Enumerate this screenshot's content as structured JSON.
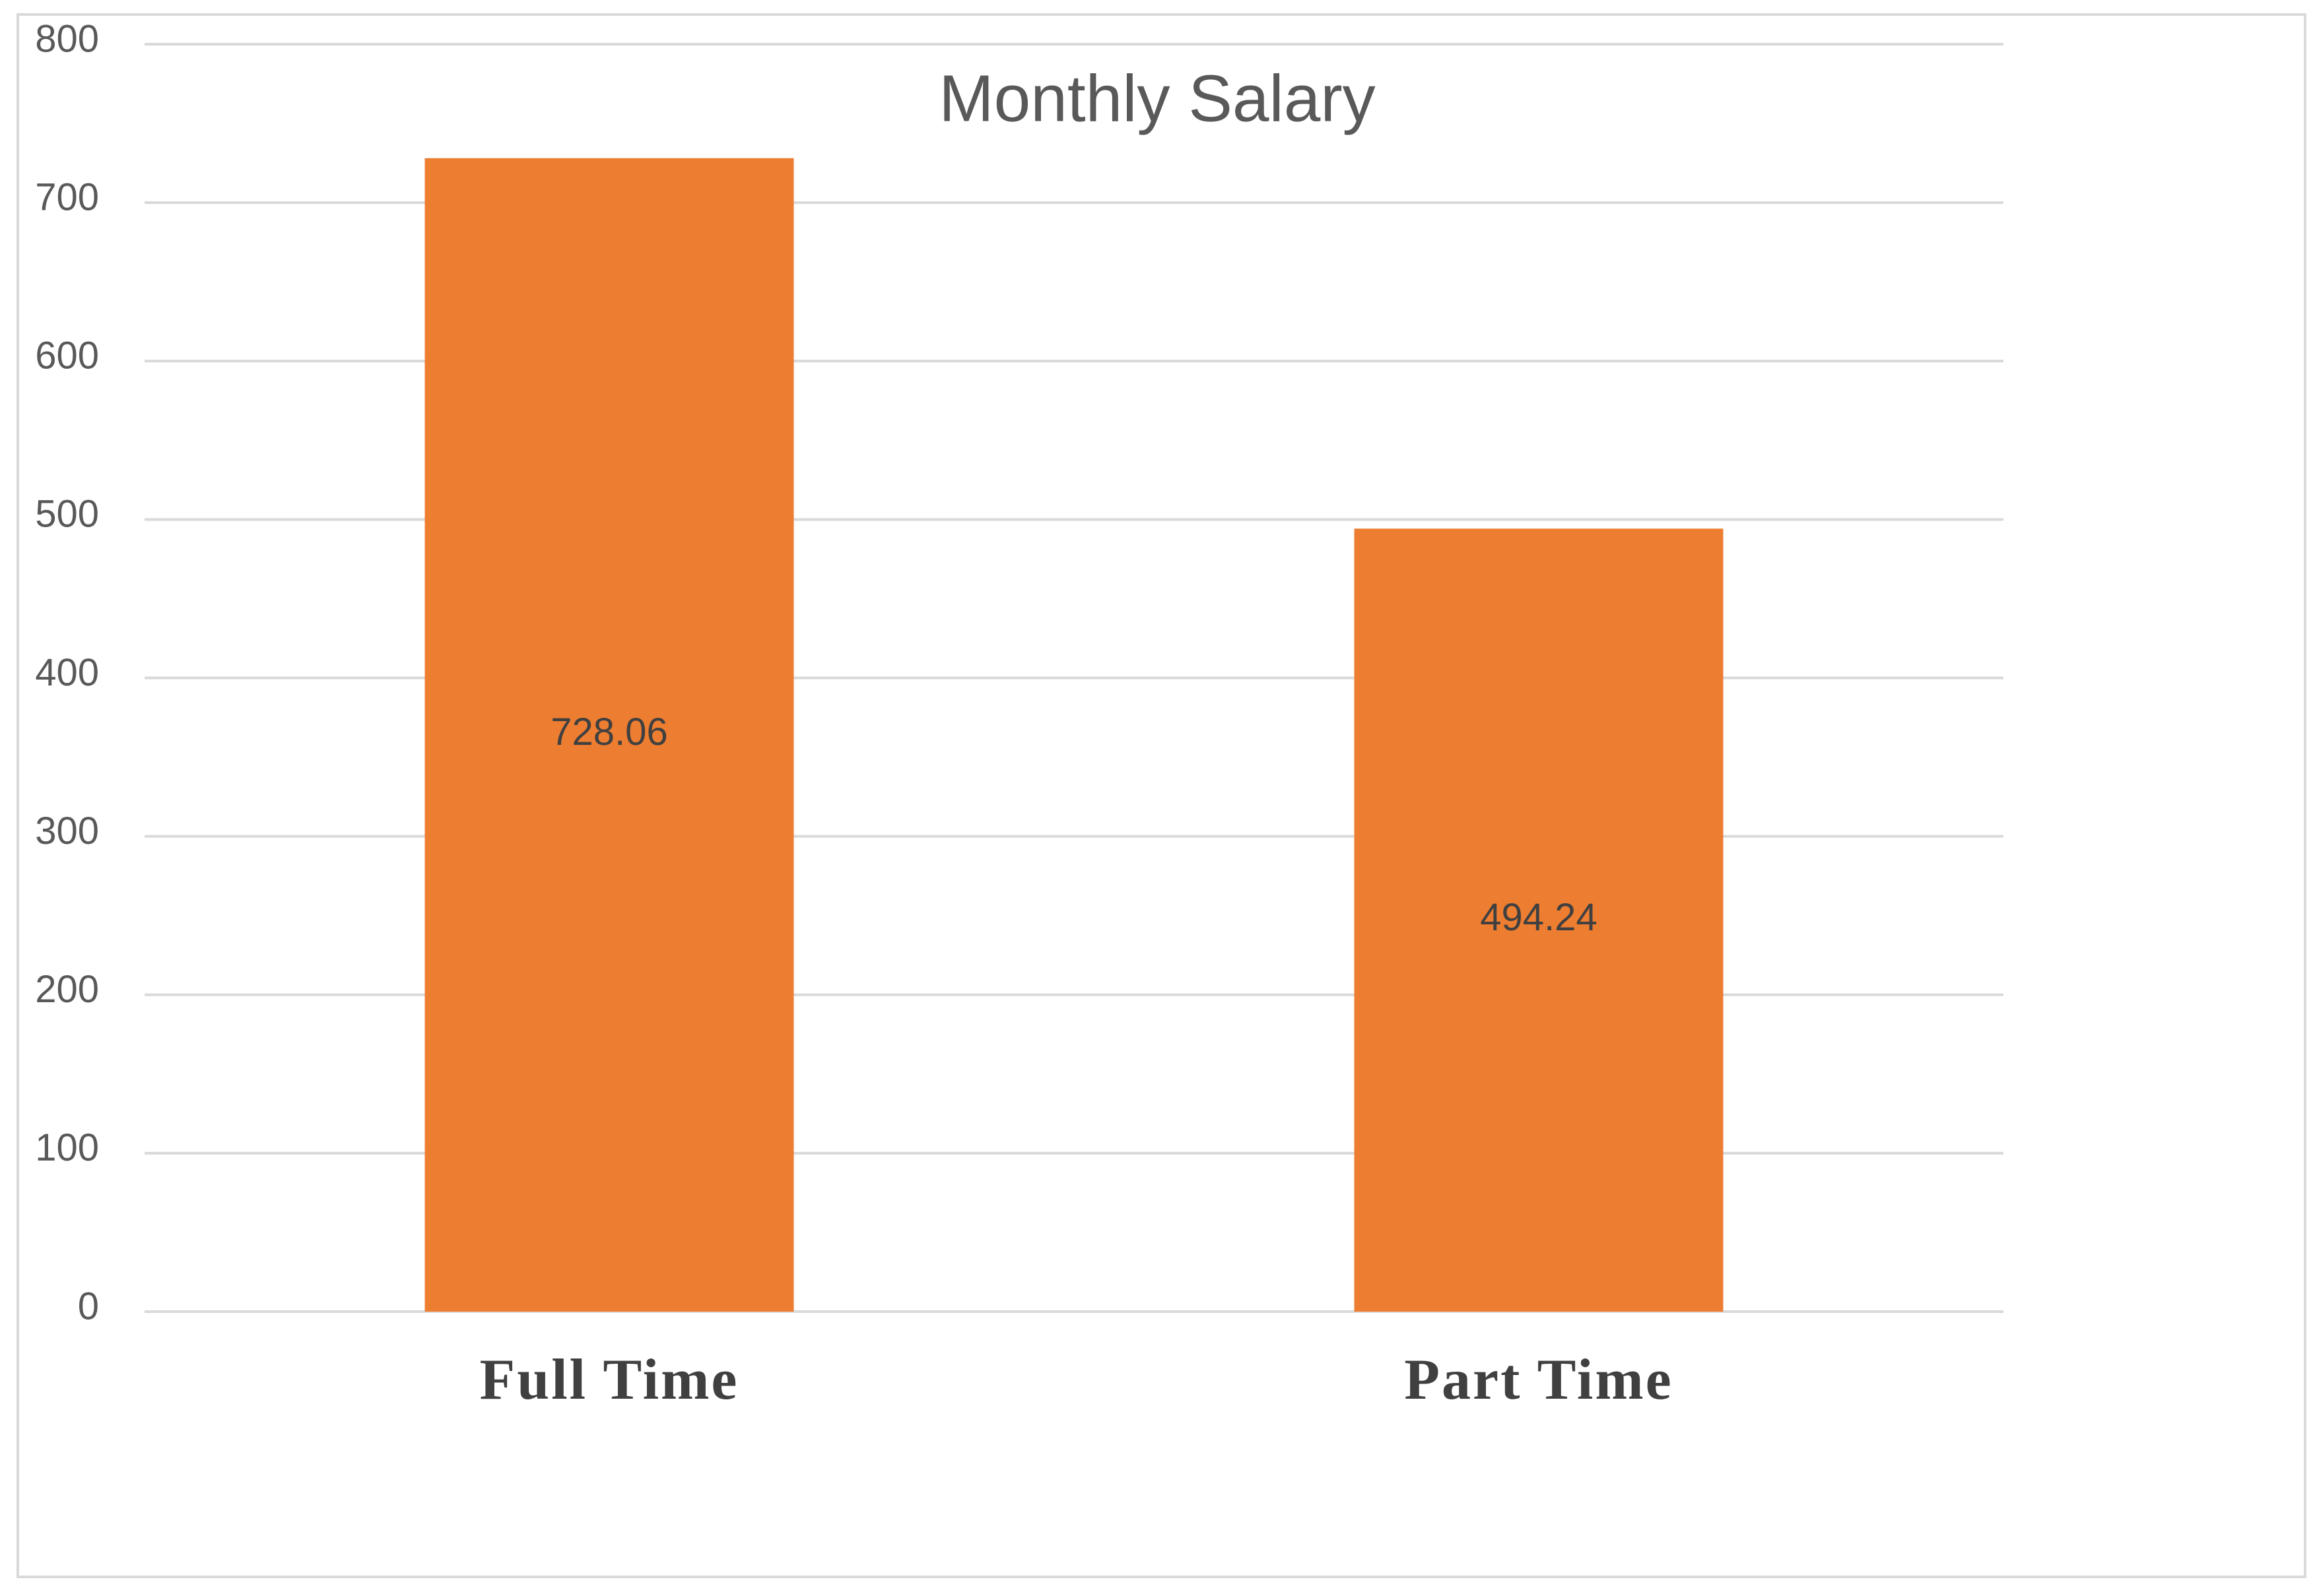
{
  "chart_data": {
    "type": "bar",
    "title": "Monthly Salary",
    "categories": [
      "Full Time",
      "Part Time"
    ],
    "values": [
      728.06,
      494.24
    ],
    "color": "#ed7d31",
    "ylim": [
      0,
      800
    ],
    "yticks": [
      0,
      100,
      200,
      300,
      400,
      500,
      600,
      700,
      800
    ],
    "grid": true
  }
}
